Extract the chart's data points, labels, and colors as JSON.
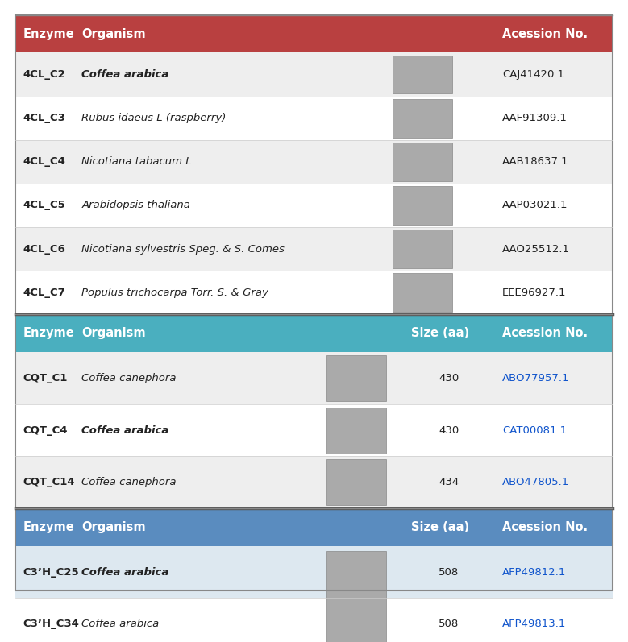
{
  "fig_width": 7.79,
  "fig_height": 7.97,
  "bg_color": "#ffffff",
  "section1_header_color": "#b94040",
  "section2_header_color": "#4aafbf",
  "section3_header_color": "#5a8cbf",
  "row_colors": [
    "#eeeeee",
    "#ffffff"
  ],
  "highlight_row_color": "#dde8f0",
  "section1": {
    "rows": [
      {
        "enzyme": "4CL_C2",
        "organism": "Coffea arabica",
        "organism_bold": true,
        "accession": "CAJ41420.1",
        "accession_link": false
      },
      {
        "enzyme": "4CL_C3",
        "organism": "Rubus idaeus L (raspberry)",
        "organism_bold": false,
        "accession": "AAF91309.1",
        "accession_link": false
      },
      {
        "enzyme": "4CL_C4",
        "organism": "Nicotiana tabacum L.",
        "organism_bold": false,
        "accession": "AAB18637.1",
        "accession_link": false
      },
      {
        "enzyme": "4CL_C5",
        "organism": "Arabidopsis thaliana",
        "organism_bold": false,
        "accession": "AAP03021.1",
        "accession_link": false
      },
      {
        "enzyme": "4CL_C6",
        "organism": "Nicotiana sylvestris Speg. & S. Comes",
        "organism_bold": false,
        "accession": "AAO25512.1",
        "accession_link": false
      },
      {
        "enzyme": "4CL_C7",
        "organism": "Populus trichocarpa Torr. S. & Gray",
        "organism_bold": false,
        "accession": "EEE96927.1",
        "accession_link": false
      }
    ]
  },
  "section2": {
    "rows": [
      {
        "enzyme": "CQT_C1",
        "organism": "Coffea canephora",
        "organism_bold": false,
        "size": "430",
        "accession": "ABO77957.1",
        "accession_link": true,
        "highlight": false
      },
      {
        "enzyme": "CQT_C4",
        "organism": "Coffea arabica",
        "organism_bold": true,
        "size": "430",
        "accession": "CAT00081.1",
        "accession_link": true,
        "highlight": false
      },
      {
        "enzyme": "CQT_C14",
        "organism": "Coffea canephora",
        "organism_bold": false,
        "size": "434",
        "accession": "ABO47805.1",
        "accession_link": true,
        "highlight": false
      }
    ]
  },
  "section3": {
    "rows": [
      {
        "enzyme": "C3’H_C25",
        "organism": "Coffea arabica",
        "organism_bold": true,
        "size": "508",
        "accession": "AFP49812.1",
        "accession_link": true,
        "highlight": true
      },
      {
        "enzyme": "C3’H_C34",
        "organism": "Coffea arabica",
        "organism_bold": false,
        "size": "508",
        "accession": "AFP49813.1",
        "accession_link": true,
        "highlight": false
      }
    ]
  }
}
